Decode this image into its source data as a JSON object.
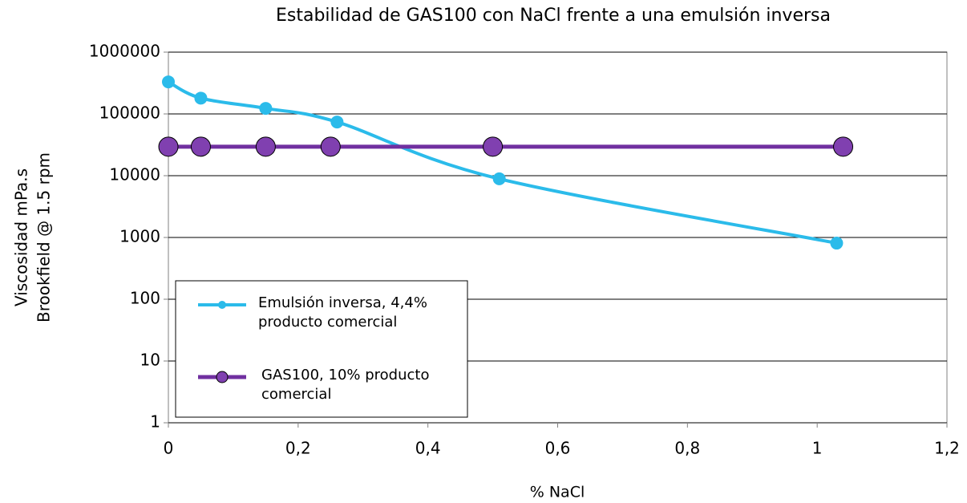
{
  "chart_data": {
    "type": "line",
    "title": "Estabilidad de GAS100 con NaCl frente a una emulsión inversa",
    "x_label": "% NaCl",
    "y_label": [
      "Viscosidad mPa.s",
      "Brookfield @ 1.5 rpm"
    ],
    "log_y": true,
    "grid": true,
    "legend": "lower left",
    "xlim": [
      0,
      1.2
    ],
    "xticks": [
      0,
      {
        "value": 0.2,
        "label": "0,2"
      },
      {
        "value": 0.4,
        "label": "0,4"
      },
      {
        "value": 0.6,
        "label": "0,6"
      },
      {
        "value": 0.8,
        "label": "0,8"
      },
      1,
      {
        "value": 1.2,
        "label": "1,2"
      }
    ],
    "ylim": [
      1,
      1000000
    ],
    "yticks": [
      1,
      10,
      100,
      1000,
      10000,
      100000,
      1000000
    ],
    "series": [
      {
        "name": "Emulsión inversa, 4,4% producto comercial",
        "color": "#2bbbea",
        "smooth": true,
        "x": [
          0,
          0.05,
          0.15,
          0.26,
          0.51,
          1.03
        ],
        "values": [
          330000,
          180000,
          123000,
          74000,
          8900,
          810
        ]
      },
      {
        "name": "GAS100, 10% producto comercial",
        "color": "#7030a0",
        "marker_fill": "#8040b0",
        "smooth": false,
        "x": [
          0,
          0.05,
          0.15,
          0.25,
          0.5,
          1.04
        ],
        "values": [
          29500,
          29500,
          29500,
          29500,
          29500,
          29500
        ]
      }
    ]
  }
}
